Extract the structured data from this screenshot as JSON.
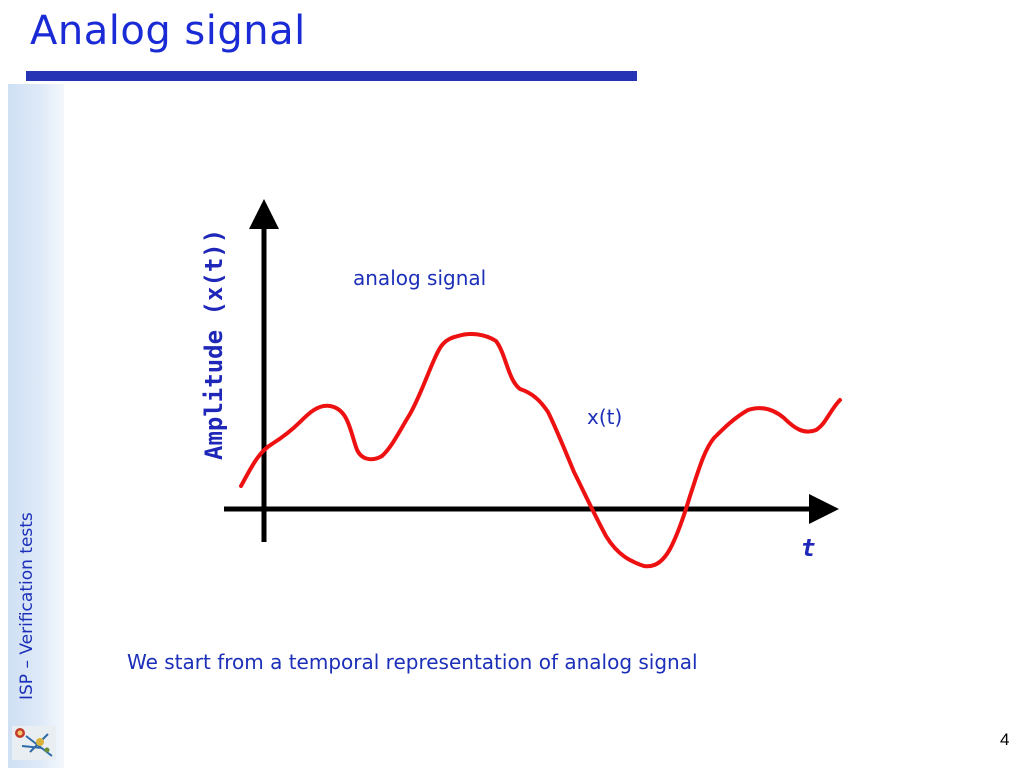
{
  "slide": {
    "title": "Analog signal",
    "sidebar_text": "ISP – Verification tests",
    "caption": "We start from a temporal representation of analog signal",
    "page_number": "4"
  },
  "diagram": {
    "y_axis_label": "Amplitude (x(t))",
    "x_axis_label": "t",
    "signal_label": "analog signal",
    "curve_label": "x(t)"
  },
  "colors": {
    "title": "#1a2bd6",
    "rule": "#2733b5",
    "text": "#1c2fb8",
    "curve": "#ee1111",
    "axis": "#000000",
    "sidebar": "#d6e4f5"
  },
  "icons": {
    "logo": "isp-logo-icon"
  }
}
